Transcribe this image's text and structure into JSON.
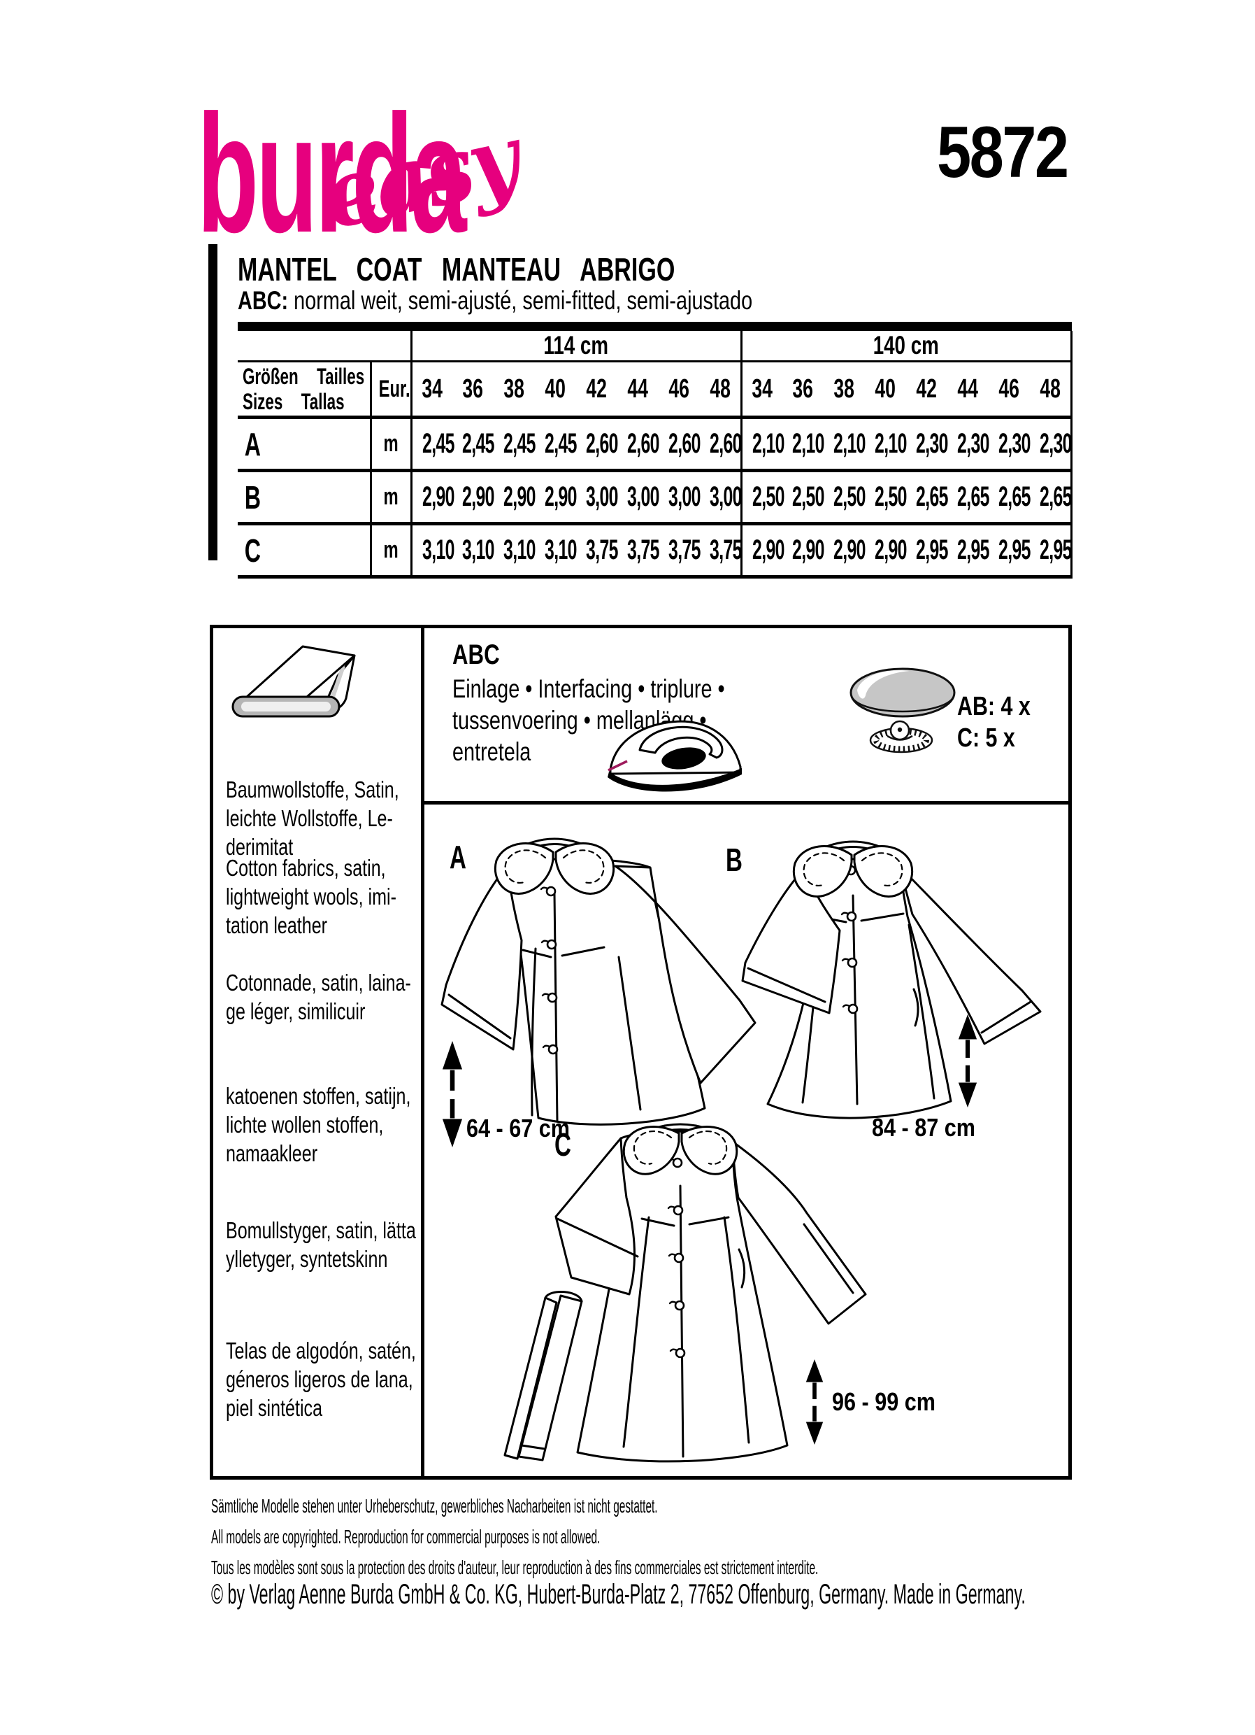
{
  "brand": {
    "logo_main": "burda",
    "logo_sub": "easy",
    "pattern_number": "5872",
    "accent_color": "#e6007e"
  },
  "header": {
    "title": "MANTEL   COAT   MANTEAU   ABRIGO",
    "fit_label": "ABC:",
    "fit_text": " normal weit, semi-ajusté, semi-fitted, semi-ajustado"
  },
  "size_table": {
    "width_groups": [
      "114 cm",
      "140 cm"
    ],
    "size_header": {
      "line1": "Größen  Tailles",
      "line2": "Sizes  Tallas",
      "eur": "Eur."
    },
    "sizes": [
      "34",
      "36",
      "38",
      "40",
      "42",
      "44",
      "46",
      "48"
    ],
    "unit": "m",
    "rows": [
      {
        "view": "A",
        "g114": [
          "2,45",
          "2,45",
          "2,45",
          "2,45",
          "2,60",
          "2,60",
          "2,60",
          "2,60"
        ],
        "g140": [
          "2,10",
          "2,10",
          "2,10",
          "2,10",
          "2,30",
          "2,30",
          "2,30",
          "2,30"
        ]
      },
      {
        "view": "B",
        "g114": [
          "2,90",
          "2,90",
          "2,90",
          "2,90",
          "3,00",
          "3,00",
          "3,00",
          "3,00"
        ],
        "g140": [
          "2,50",
          "2,50",
          "2,50",
          "2,50",
          "2,65",
          "2,65",
          "2,65",
          "2,65"
        ]
      },
      {
        "view": "C",
        "g114": [
          "3,10",
          "3,10",
          "3,10",
          "3,10",
          "3,75",
          "3,75",
          "3,75",
          "3,75"
        ],
        "g140": [
          "2,90",
          "2,90",
          "2,90",
          "2,90",
          "2,95",
          "2,95",
          "2,95",
          "2,95"
        ]
      }
    ]
  },
  "materials": {
    "blocks": [
      {
        "lang": "de",
        "text": "Baumwollstoffe, Satin,\nleichte Wollstoffe, Le-\nderimitat"
      },
      {
        "lang": "en",
        "text": "Cotton fabrics, satin,\nlightweight wools, imi-\ntation leather"
      },
      {
        "lang": "fr",
        "text": "Cotonnade, satin, laina-\nge léger, similicuir"
      },
      {
        "lang": "nl",
        "text": "katoenen stoffen, satijn,\nlichte wollen stoffen,\nnamaakleer"
      },
      {
        "lang": "sv",
        "text": "Bomullstyger, satin, lätta\nylletyger, syntetskinn"
      },
      {
        "lang": "es",
        "text": "Telas de algodón, satén,\ngéneros ligeros de lana,\npiel sintética"
      }
    ]
  },
  "notions": {
    "group_label": "ABC",
    "interfacing": "Einlage • Interfacing • triplure •\ntussenvoering • mellanlägg •\nentretela",
    "buttons_ab": "AB: 4 x",
    "buttons_c": "C: 5 x"
  },
  "views": [
    {
      "label": "A",
      "length": "64 - 67 cm"
    },
    {
      "label": "B",
      "length": "84 - 87 cm"
    },
    {
      "label": "C",
      "length": "96 - 99 cm"
    }
  ],
  "footer": {
    "lines": [
      "Sämtliche Modelle stehen unter Urheberschutz, gewerbliches Nacharbeiten ist nicht gestattet.",
      "All models are copyrighted. Reproduction for commercial purposes is not allowed.",
      "Tous les modèles sont sous la protection des droits d'auteur, leur reproduction à des fins commerciales est strictement interdite.",
      "© by Verlag Aenne Burda GmbH & Co. KG, Hubert-Burda-Platz 2, 77652 Offenburg, Germany. Made in Germany."
    ]
  }
}
